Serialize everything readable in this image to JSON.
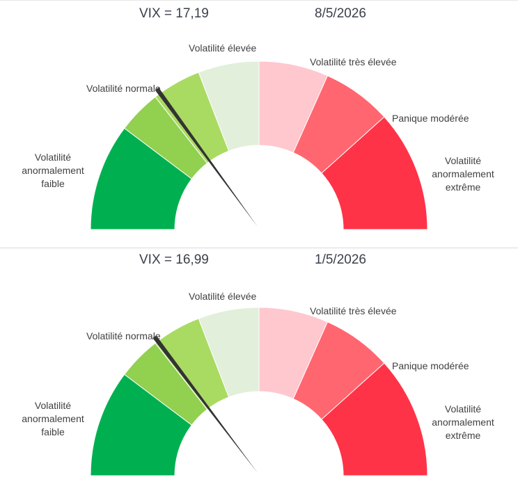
{
  "chart_data": [
    {
      "type": "gauge",
      "vix_label": "VIX = 17,19",
      "date": "8/5/2026",
      "needle_value": 17.19,
      "zones": [
        {
          "label": "Volatilité anormalement faible",
          "color": "#00b050"
        },
        {
          "label": "Volatilité normale",
          "color": "#92d050"
        },
        {
          "label": "Volatilité élevée",
          "color": "#e2efda"
        },
        {
          "label": "Volatilité très élevée",
          "color": "#ffc7ce"
        },
        {
          "label": "Panique modérée",
          "color": "#ff6670"
        },
        {
          "label": "Volatilité anormalement extrême",
          "color": "#ff3347"
        }
      ]
    },
    {
      "type": "gauge",
      "vix_label": "VIX = 16,99",
      "date": "1/5/2026",
      "needle_value": 16.99,
      "zones": [
        {
          "label": "Volatilité anormalement faible",
          "color": "#00b050"
        },
        {
          "label": "Volatilité normale",
          "color": "#92d050"
        },
        {
          "label": "Volatilité élevée",
          "color": "#e2efda"
        },
        {
          "label": "Volatilité très élevée",
          "color": "#ffc7ce"
        },
        {
          "label": "Panique modérée",
          "color": "#ff6670"
        },
        {
          "label": "Volatilité anormalement extrême",
          "color": "#ff3347"
        }
      ]
    }
  ],
  "labels": {
    "low": [
      "Volatilité",
      "anormalement",
      "faible"
    ],
    "normal": "Volatilité normale",
    "high": "Volatilité élevée",
    "very_high": "Volatilité très élevée",
    "panic": "Panique modérée",
    "extreme": [
      "Volatilité",
      "anormalement",
      "extrême"
    ]
  }
}
